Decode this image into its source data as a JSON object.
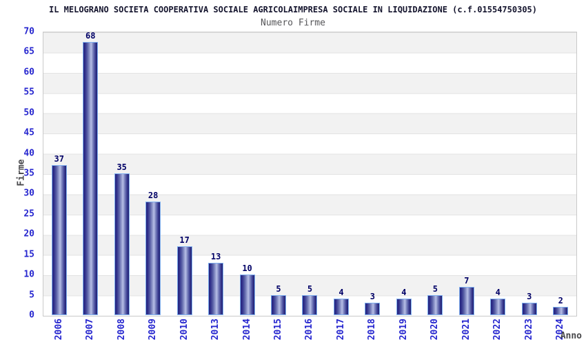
{
  "title": "IL MELOGRANO SOCIETA COOPERATIVA SOCIALE AGRICOLAIMPRESA SOCIALE IN LIQUIDAZIONE (c.f.01554750305)",
  "subtitle": "Numero Firme",
  "chart_data": {
    "type": "bar",
    "title": "IL MELOGRANO SOCIETA COOPERATIVA SOCIALE AGRICOLAIMPRESA SOCIALE IN LIQUIDAZIONE (c.f.01554750305)",
    "subtitle": "Numero Firme",
    "xlabel": "Anno",
    "ylabel": "Firme",
    "categories": [
      "2006",
      "2007",
      "2008",
      "2009",
      "2010",
      "2013",
      "2014",
      "2015",
      "2016",
      "2017",
      "2018",
      "2019",
      "2020",
      "2021",
      "2022",
      "2023",
      "2024"
    ],
    "values": [
      37,
      68,
      35,
      28,
      17,
      13,
      10,
      5,
      5,
      4,
      3,
      4,
      5,
      7,
      4,
      3,
      2
    ],
    "ylim": [
      0,
      70
    ],
    "ytick_step": 5,
    "yticks": [
      0,
      5,
      10,
      15,
      20,
      25,
      30,
      35,
      40,
      45,
      50,
      55,
      60,
      65,
      70
    ],
    "grid": "alternating-horizontal-bands",
    "legend": "none",
    "bar_labels_shown": true,
    "colors": {
      "bar_dark": "#24247e",
      "bar_light": "#b7bee6",
      "bar_border": "#7fb0f0",
      "tick_label": "#2626cf",
      "value_label": "#000066",
      "axis_title": "#47474a",
      "title": "#15152e",
      "subtitle": "#555558",
      "band_gray": "#f2f2f2",
      "band_white": "#ffffff",
      "plot_border": "#c9c9c9",
      "background": "#ffffff"
    }
  }
}
